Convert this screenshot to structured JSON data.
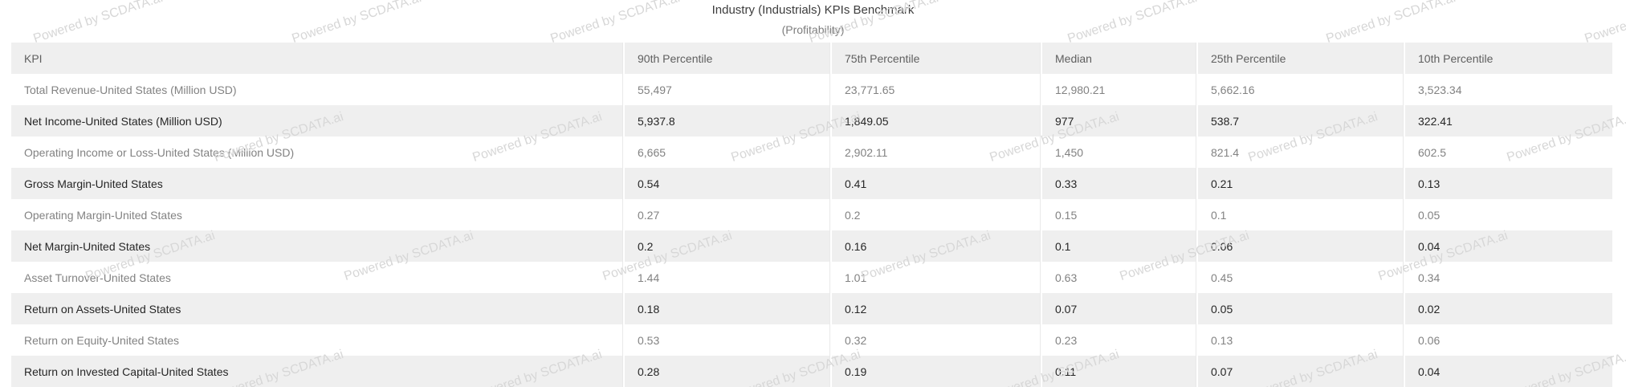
{
  "watermark": {
    "text": "Powered by SCDATA.ai"
  },
  "chart_data": {
    "type": "table",
    "title": "Industry (Industrials) KPIs Benchmark",
    "subtitle": "(Profitability)",
    "columns": [
      "KPI",
      "90th Percentile",
      "75th Percentile",
      "Median",
      "25th Percentile",
      "10th Percentile"
    ],
    "rows": [
      {
        "kpi": "Total Revenue-United States (Million USD)",
        "values": [
          "55,497",
          "23,771.65",
          "12,980.21",
          "5,662.16",
          "3,523.34"
        ]
      },
      {
        "kpi": "Net Income-United States (Million USD)",
        "values": [
          "5,937.8",
          "1,849.05",
          "977",
          "538.7",
          "322.41"
        ]
      },
      {
        "kpi": "Operating Income or Loss-United States (Million USD)",
        "values": [
          "6,665",
          "2,902.11",
          "1,450",
          "821.4",
          "602.5"
        ]
      },
      {
        "kpi": "Gross Margin-United States",
        "values": [
          "0.54",
          "0.41",
          "0.33",
          "0.21",
          "0.13"
        ]
      },
      {
        "kpi": "Operating Margin-United States",
        "values": [
          "0.27",
          "0.2",
          "0.15",
          "0.1",
          "0.05"
        ]
      },
      {
        "kpi": "Net Margin-United States",
        "values": [
          "0.2",
          "0.16",
          "0.1",
          "0.06",
          "0.04"
        ]
      },
      {
        "kpi": "Asset Turnover-United States",
        "values": [
          "1.44",
          "1.01",
          "0.63",
          "0.45",
          "0.34"
        ]
      },
      {
        "kpi": "Return on Assets-United States",
        "values": [
          "0.18",
          "0.12",
          "0.07",
          "0.05",
          "0.02"
        ]
      },
      {
        "kpi": "Return on Equity-United States",
        "values": [
          "0.53",
          "0.32",
          "0.23",
          "0.13",
          "0.06"
        ]
      },
      {
        "kpi": "Return on Invested Capital-United States",
        "values": [
          "0.28",
          "0.19",
          "0.11",
          "0.07",
          "0.04"
        ]
      }
    ],
    "layout_hints": {
      "row_striping": "odd rows white with gray text, even rows light gray with dark text",
      "alignment": "all columns left-aligned",
      "grid": "vertical white separators between columns, no outer border",
      "legend": "none"
    }
  },
  "colors": {
    "header_bg": "#efefef",
    "stripe_bg": "#efefef",
    "white_row_text": "#828282",
    "stripe_row_text": "#262626",
    "header_text": "#5f5f5f",
    "title_text": "#3d3d3d",
    "subtitle_text": "#7d7d7d",
    "watermark": "#d7d7d7",
    "cell_line": "#e9e9e9"
  }
}
